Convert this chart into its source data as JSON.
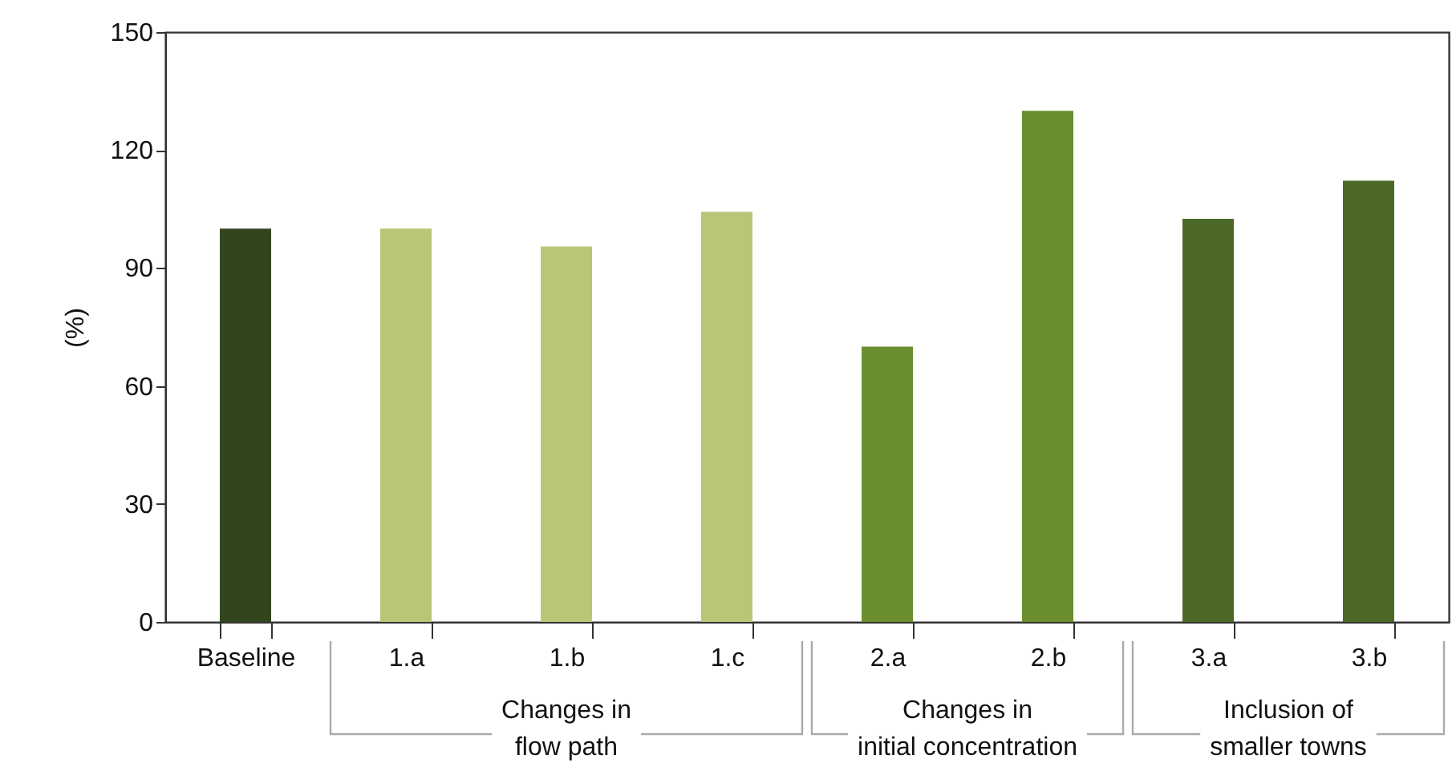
{
  "chart_data": {
    "type": "bar",
    "ylabel": "(%)",
    "categories": [
      "Baseline",
      "1.a",
      "1.b",
      "1.c",
      "2.a",
      "2.b",
      "3.a",
      "3.b"
    ],
    "values": [
      100,
      100,
      95.5,
      104.3,
      70,
      130,
      102.5,
      112.2
    ],
    "colors": [
      "#32461e",
      "#bac576",
      "#bac576",
      "#bac576",
      "#6b8e2e",
      "#6b8e2e",
      "#4b6826",
      "#4b6826"
    ],
    "ylim": [
      0,
      150
    ],
    "yticks": [
      0,
      30,
      60,
      90,
      120,
      150
    ],
    "grid": false,
    "legend": false,
    "annotations": [
      "Changes in\nflow path",
      "Changes in\ninitial concentration",
      "Inclusion of\nsmaller towns"
    ]
  }
}
